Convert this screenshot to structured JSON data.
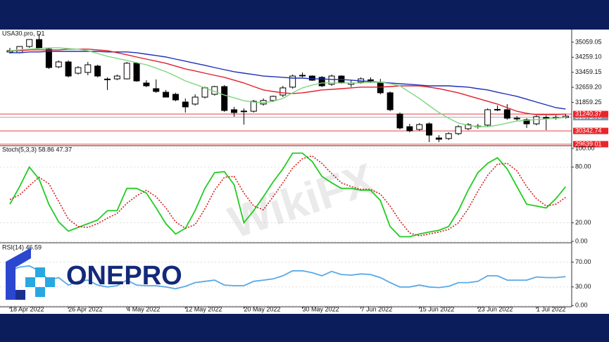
{
  "chart_data": [
    {
      "type": "candlestick",
      "title": "USA30.pro, D1",
      "categories": [
        "18 Apr 2022",
        null,
        null,
        null,
        null,
        null,
        "26 Apr 2022",
        null,
        null,
        null,
        null,
        null,
        "4 May 2022",
        null,
        null,
        null,
        null,
        null,
        "12 May 2022",
        null,
        null,
        null,
        null,
        null,
        "20 May 2022",
        null,
        null,
        null,
        null,
        null,
        "30 May 2022",
        null,
        null,
        null,
        null,
        null,
        "7 Jun 2022",
        null,
        null,
        null,
        null,
        null,
        "15 Jun 2022",
        null,
        null,
        null,
        null,
        null,
        "23 Jun 2022",
        null,
        null,
        null,
        null,
        null,
        "1 Jul 2022",
        null,
        null,
        null
      ],
      "open": [
        34535,
        34500,
        34830,
        35200,
        34690,
        33750,
        34010,
        33410,
        33450,
        33790,
        33100,
        33110,
        33110,
        33940,
        32890,
        32590,
        32400,
        32290,
        31880,
        31770,
        32140,
        32290,
        32700,
        31470,
        31390,
        31390,
        31770,
        31960,
        32250,
        32670,
        33300,
        33260,
        33190,
        32820,
        33260,
        32820,
        32930,
        33040,
        32930,
        32370,
        31240,
        30570,
        30420,
        30720,
        29970,
        29940,
        30200,
        30460,
        30570,
        30650,
        31470,
        31470,
        31020,
        30940,
        30720,
        31060,
        31020,
        31060
      ],
      "high": [
        34760,
        34840,
        35210,
        35510,
        34760,
        34090,
        34090,
        33790,
        34010,
        33860,
        33190,
        33340,
        34010,
        34010,
        33040,
        33080,
        32520,
        32370,
        32070,
        32290,
        32700,
        32740,
        32780,
        31620,
        31540,
        31990,
        32070,
        32220,
        32740,
        33340,
        33450,
        33300,
        33260,
        33340,
        33300,
        33040,
        33190,
        33190,
        33110,
        32440,
        31320,
        30720,
        30760,
        30800,
        30120,
        30270,
        30650,
        30760,
        30720,
        31540,
        31690,
        31770,
        31130,
        31020,
        31170,
        31170,
        31170,
        31240
      ],
      "low": [
        34460,
        34460,
        34760,
        34690,
        33640,
        33680,
        33190,
        33340,
        33300,
        33190,
        32520,
        33040,
        33080,
        32960,
        32670,
        32370,
        32140,
        31920,
        31320,
        31690,
        32070,
        32220,
        31360,
        31100,
        30680,
        31320,
        31690,
        31880,
        32140,
        32590,
        33190,
        33000,
        32670,
        32740,
        32850,
        32670,
        32850,
        32890,
        32290,
        31390,
        30420,
        30270,
        30350,
        29750,
        29750,
        29860,
        30120,
        30380,
        30460,
        30570,
        31390,
        30940,
        30870,
        30500,
        30640,
        30380,
        30940,
        31000
      ],
      "close": [
        34610,
        34830,
        35200,
        34760,
        33710,
        34010,
        33260,
        33710,
        33860,
        33260,
        33080,
        33260,
        33940,
        33000,
        32740,
        32440,
        32140,
        31990,
        31620,
        32140,
        32630,
        32700,
        31430,
        31320,
        31400,
        31920,
        31960,
        32180,
        32630,
        33260,
        33280,
        33040,
        32740,
        33260,
        32930,
        32890,
        33110,
        33060,
        32370,
        31470,
        30500,
        30350,
        30680,
        30120,
        29900,
        30200,
        30570,
        30680,
        30600,
        31470,
        31490,
        31020,
        30980,
        30720,
        31100,
        31020,
        31060,
        31130
      ],
      "up_color": "#ffffff",
      "down_color": "#000000",
      "series": [
        {
          "color": "#1f2fb8",
          "values": [
            34500,
            34500,
            34540,
            34540,
            34570,
            34570,
            34570,
            34570,
            34570,
            34570,
            34540,
            34540,
            34540,
            34500,
            34420,
            34350,
            34270,
            34160,
            34050,
            33940,
            33830,
            33710,
            33600,
            33490,
            33410,
            33340,
            33260,
            33230,
            33190,
            33150,
            33150,
            33110,
            33110,
            33080,
            33080,
            33040,
            33000,
            32970,
            32930,
            32890,
            32850,
            32820,
            32780,
            32740,
            32740,
            32740,
            32700,
            32670,
            32590,
            32520,
            32400,
            32290,
            32180,
            32030,
            31880,
            31730,
            31580,
            31510
          ]
        },
        {
          "color": "#e0202a",
          "values": [
            34610,
            34610,
            34650,
            34650,
            34650,
            34650,
            34690,
            34690,
            34690,
            34650,
            34610,
            34500,
            34390,
            34270,
            34160,
            34050,
            33940,
            33790,
            33640,
            33530,
            33410,
            33300,
            33190,
            33040,
            32890,
            32700,
            32520,
            32440,
            32370,
            32330,
            32370,
            32440,
            32520,
            32550,
            32590,
            32630,
            32670,
            32670,
            32670,
            32700,
            32740,
            32740,
            32740,
            32670,
            32590,
            32480,
            32370,
            32220,
            32070,
            31920,
            31770,
            31580,
            31390,
            31280,
            31210,
            31210,
            31210,
            31240
          ]
        },
        {
          "color": "#7fd67f",
          "values": [
            34610,
            34650,
            34690,
            34720,
            34760,
            34760,
            34720,
            34690,
            34610,
            34460,
            34310,
            34200,
            34090,
            33970,
            33860,
            33680,
            33490,
            33260,
            33000,
            32820,
            32630,
            32440,
            32250,
            32100,
            31950,
            31880,
            31840,
            31920,
            32070,
            32370,
            32630,
            32780,
            32890,
            32890,
            32890,
            32890,
            32890,
            32930,
            32930,
            32850,
            32740,
            32400,
            32070,
            31690,
            31320,
            31020,
            30760,
            30650,
            30570,
            30570,
            30650,
            30760,
            30870,
            30910,
            30950,
            30980,
            31020,
            31060
          ]
        }
      ],
      "hlines": [
        {
          "level": {
            "value": 31073.7,
            "label": "31073.70"
          },
          "color": "#8a93a8"
        },
        {
          "level": 31240.37,
          "color": "#e8262a"
        },
        {
          "level": 30342.74,
          "color": "#e8262a"
        },
        {
          "level": 29639.01,
          "color": "#e8262a"
        }
      ],
      "ylim": [
        29560,
        35730
      ],
      "yticks": [
        35059.05,
        {
          "value": 34259.1,
          "label": "34259.10"
        },
        33459.15,
        {
          "value": 32659.2,
          "label": "32659.20"
        },
        31859.25
      ]
    },
    {
      "type": "line",
      "title": "Stoch(5,3,3) 58.86 47.37",
      "series": [
        {
          "color": "#22cc22",
          "style": "solid",
          "values": [
            40,
            59,
            80,
            67,
            40,
            21,
            11,
            15,
            19,
            23,
            33,
            33,
            57,
            57,
            52,
            36,
            19,
            8,
            14,
            33,
            57,
            74,
            75,
            61,
            20,
            33,
            48,
            64,
            78,
            95,
            95,
            86,
            70,
            63,
            57,
            57,
            55,
            55,
            44,
            16,
            5,
            5,
            8,
            10,
            12,
            16,
            33,
            55,
            74,
            84,
            90,
            78,
            59,
            40,
            38,
            36,
            46,
            58.86
          ]
        },
        {
          "color": "#d42020",
          "style": "dotted",
          "values": [
            45,
            50,
            60,
            69,
            62,
            43,
            24,
            16,
            15,
            19,
            25,
            30,
            41,
            49,
            55,
            48,
            36,
            21,
            14,
            18,
            35,
            55,
            69,
            70,
            52,
            38,
            34,
            48,
            63,
            79,
            89,
            92,
            84,
            73,
            63,
            59,
            56,
            56,
            51,
            38,
            22,
            9,
            6,
            8,
            10,
            13,
            20,
            35,
            54,
            71,
            83,
            84,
            76,
            59,
            46,
            38,
            40,
            47.37
          ]
        }
      ],
      "ylim": [
        -1.5,
        103
      ],
      "yticks": [
        {
          "value": 100,
          "label": "100.00"
        },
        {
          "value": 80,
          "label": "80.00"
        },
        {
          "value": 20,
          "label": "20.00"
        },
        {
          "value": 0,
          "label": "0.00"
        }
      ]
    },
    {
      "type": "line",
      "title": "RSI(14) 46.59",
      "series": [
        {
          "color": "#5aa9e6",
          "style": "solid",
          "values": [
            56,
            62,
            64,
            56,
            41,
            45,
            33,
            39,
            41,
            33,
            30,
            32,
            41,
            33,
            32,
            32,
            30,
            27,
            31,
            37,
            39,
            41,
            33,
            32,
            32,
            39,
            41,
            43,
            48,
            56,
            56,
            53,
            48,
            55,
            50,
            49,
            51,
            50,
            45,
            37,
            30,
            30,
            33,
            30,
            29,
            31,
            37,
            37,
            39,
            48,
            48,
            41,
            41,
            41,
            46,
            45,
            45,
            46.59
          ]
        }
      ],
      "ylim": [
        -2,
        100
      ],
      "yticks": [
        {
          "value": 70,
          "label": "70.00"
        },
        {
          "value": 30,
          "label": "30.00"
        },
        {
          "value": 0,
          "label": "0.00"
        }
      ]
    }
  ],
  "watermark": "WikiFX",
  "logo": "ONEPRO"
}
